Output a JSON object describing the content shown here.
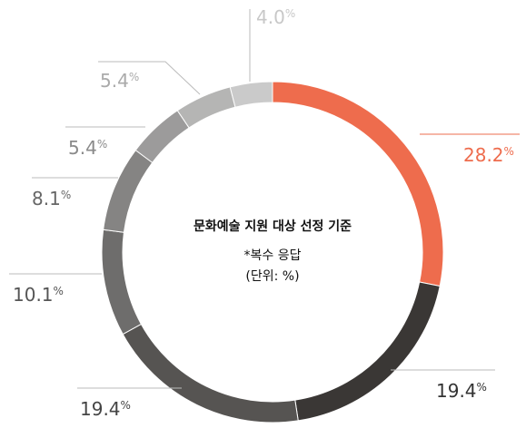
{
  "chart_data": {
    "type": "donut",
    "title": "문화예술 지원 대상 선정 기준",
    "subtitle": "*복수 응답",
    "note": "(단위: %)",
    "unit": "%",
    "values": [
      28.2,
      19.4,
      19.4,
      10.1,
      8.1,
      5.4,
      5.4,
      4.0
    ],
    "value_labels": [
      "28.2",
      "19.4",
      "19.4",
      "10.1",
      "8.1",
      "5.4",
      "5.4",
      "4.0"
    ],
    "colors": [
      "#ee6c4d",
      "#3a3735",
      "#565452",
      "#6e6d6c",
      "#858483",
      "#9c9b9b",
      "#b5b5b4",
      "#cacaca"
    ],
    "label_colors": [
      "#ee6c4d",
      "#333333",
      "#444444",
      "#555555",
      "#666666",
      "#8a8a8a",
      "#aaaaaa",
      "#c8c8c8"
    ]
  }
}
